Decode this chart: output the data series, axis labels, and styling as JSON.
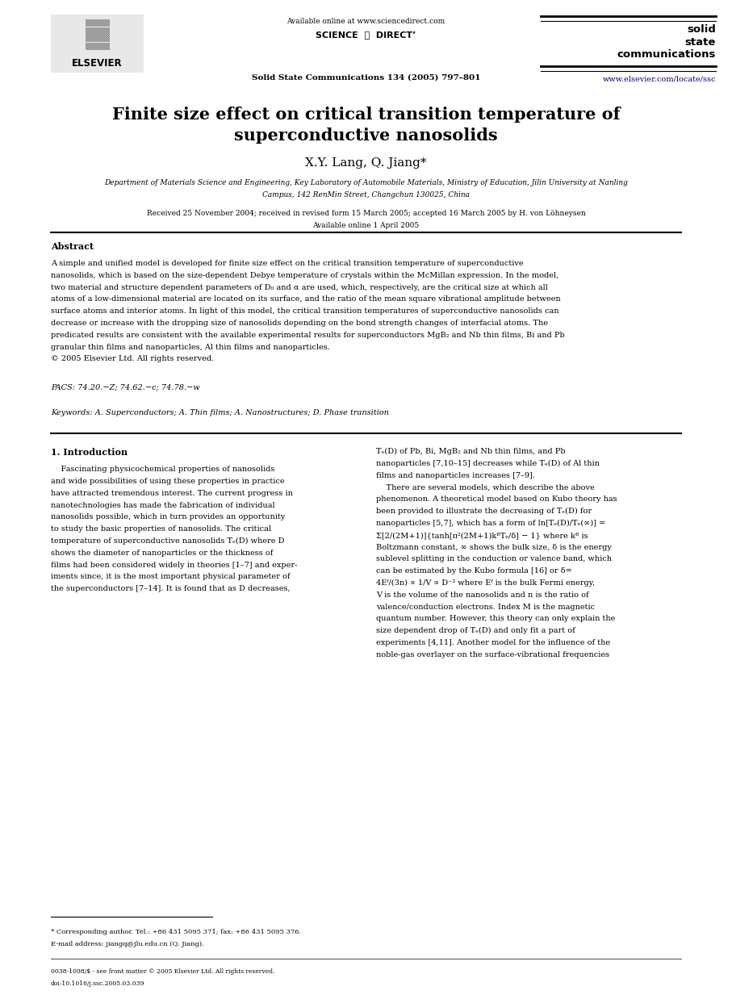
{
  "page_width": 9.07,
  "page_height": 12.38,
  "background_color": "#ffffff",
  "header": {
    "available_online_text": "Available online at www.sciencedirect.com",
    "sciencedirect": "SCIENCE  ⓓ  DIRECT’",
    "journal_ref": "Solid State Communications 134 (2005) 797–801",
    "journal_name": "solid\nstate\ncommunications",
    "url": "www.elsevier.com/locate/ssc",
    "url_color": "#00008B",
    "elsevier_text": "ELSEVIER"
  },
  "title": "Finite size effect on critical transition temperature of\nsuperconductive nanosolids",
  "authors": "X.Y. Lang, Q. Jiang*",
  "affiliation_line1": "Department of Materials Science and Engineering, Key Laboratory of Automobile Materials, Ministry of Education, Jilin University at Nanling",
  "affiliation_line2": "Campus, 142 RenMin Street, Changchun 130025, China",
  "received": "Received 25 November 2004; received in revised form 15 March 2005; accepted 16 March 2005 by H. von Löhneysen",
  "available_online": "Available online 1 April 2005",
  "abstract_title": "Abstract",
  "abstract_lines": [
    "A simple and unified model is developed for finite size effect on the critical transition temperature of superconductive",
    "nanosolids, which is based on the size-dependent Debye temperature of crystals within the McMillan expression. In the model,",
    "two material and structure dependent parameters of D₀ and α are used, which, respectively, are the critical size at which all",
    "atoms of a low-dimensional material are located on its surface, and the ratio of the mean square vibrational amplitude between",
    "surface atoms and interior atoms. In light of this model, the critical transition temperatures of superconductive nanosolids can",
    "decrease or increase with the dropping size of nanosolids depending on the bond strength changes of interfacial atoms. The",
    "predicated results are consistent with the available experimental results for superconductors MgB₂ and Nb thin films, Bi and Pb",
    "granular thin films and nanoparticles, Al thin films and nanoparticles.",
    "© 2005 Elsevier Ltd. All rights reserved."
  ],
  "pacs": "PACS: 74.20.−Z; 74.62.−c; 74.78.−w",
  "keywords": "Keywords: A. Superconductors; A. Thin films; A. Nanostructures; D. Phase transition",
  "section1_title": "1. Introduction",
  "col1_lines": [
    "    Fascinating physicochemical properties of nanosolids",
    "and wide possibilities of using these properties in practice",
    "have attracted tremendous interest. The current progress in",
    "nanotechnologies has made the fabrication of individual",
    "nanosolids possible, which in turn provides an opportunity",
    "to study the basic properties of nanosolids. The critical",
    "temperature of superconductive nanosolids Tₑ(D) where D",
    "shows the diameter of nanoparticles or the thickness of",
    "films had been considered widely in theories [1–7] and exper-",
    "iments since, it is the most important physical parameter of",
    "the superconductors [7–14]. It is found that as D decreases,"
  ],
  "col2_lines": [
    "Tₑ(D) of Pb, Bi, MgB₂ and Nb thin films, and Pb",
    "nanoparticles [7,10–15] decreases while Tₑ(D) of Al thin",
    "films and nanoparticles increases [7–9].",
    "    There are several models, which describe the above",
    "phenomenon. A theoretical model based on Kubo theory has",
    "been provided to illustrate the decreasing of Tₑ(D) for",
    "nanoparticles [5,7], which has a form of ln[Tₑ(D)/Tₑ(∞)] =",
    "Σ[2/(2M+1)]{tanh[π²(2M+1)kᴮTₑ/δ] − 1} where kᴮ is",
    "Boltzmann constant, ∞ shows the bulk size, δ is the energy",
    "sublevel splitting in the conduction or valence band, which",
    "can be estimated by the Kubo formula [16] or δ=",
    "4Eᶠ/(3n) ∝ 1/V ∝ D⁻³ where Eᶠ is the bulk Fermi energy,",
    "V is the volume of the nanosolids and n is the ratio of",
    "valence/conduction electrons. Index M is the magnetic",
    "quantum number. However, this theory can only explain the",
    "size dependent drop of Tₑ(D) and only fit a part of",
    "experiments [4,11]. Another model for the influence of the",
    "noble-gas overlayer on the surface-vibrational frequencies"
  ],
  "footnote_star": "* Corresponding author. Tel.: +86 431 5095 371; fax: +86 431 5095 376.",
  "footnote_email": "E-mail address: jiangq@jlu.edu.cn (Q. Jiang).",
  "copyright_line1": "0038-1098/$ - see front matter © 2005 Elsevier Ltd. All rights reserved.",
  "copyright_line2": "doi:10.1016/j.ssc.2005.03.039"
}
